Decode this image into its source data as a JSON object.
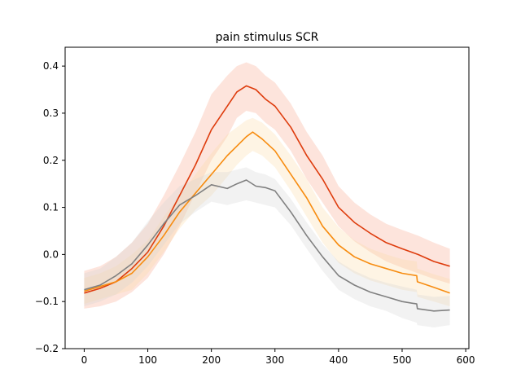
{
  "chart_data": {
    "type": "line",
    "title": "pain stimulus SCR",
    "xlabel": "",
    "ylabel": "",
    "xlim": [
      -30,
      605
    ],
    "ylim": [
      -0.2,
      0.44
    ],
    "xticks": [
      0,
      100,
      200,
      300,
      400,
      500,
      600
    ],
    "yticks": [
      -0.2,
      -0.1,
      0.0,
      0.1,
      0.2,
      0.3,
      0.4
    ],
    "grid": false,
    "series": [
      {
        "color": "#de3c0d",
        "band_color": "#f7a48a",
        "x": [
          0,
          25,
          50,
          75,
          100,
          125,
          150,
          175,
          200,
          225,
          240,
          255,
          270,
          285,
          300,
          325,
          350,
          375,
          400,
          425,
          450,
          475,
          500,
          525,
          550,
          575
        ],
        "y": [
          -0.082,
          -0.072,
          -0.058,
          -0.03,
          0.005,
          0.06,
          0.125,
          0.19,
          0.265,
          0.315,
          0.345,
          0.358,
          0.35,
          0.33,
          0.315,
          0.27,
          0.21,
          0.16,
          0.1,
          0.068,
          0.045,
          0.025,
          0.012,
          0.0,
          -0.015,
          -0.025
        ],
        "upper": [
          -0.035,
          -0.025,
          -0.005,
          0.025,
          0.065,
          0.125,
          0.19,
          0.26,
          0.34,
          0.38,
          0.4,
          0.408,
          0.4,
          0.38,
          0.365,
          0.32,
          0.26,
          0.21,
          0.145,
          0.11,
          0.085,
          0.065,
          0.052,
          0.04,
          0.025,
          0.012
        ],
        "lower": [
          -0.115,
          -0.11,
          -0.1,
          -0.08,
          -0.05,
          0.0,
          0.06,
          0.13,
          0.2,
          0.25,
          0.29,
          0.305,
          0.3,
          0.28,
          0.265,
          0.22,
          0.16,
          0.11,
          0.06,
          0.028,
          0.005,
          -0.015,
          -0.028,
          -0.04,
          -0.052,
          -0.062
        ]
      },
      {
        "color": "#f78c10",
        "band_color": "#fbd9a6",
        "x": [
          0,
          25,
          50,
          75,
          100,
          125,
          150,
          175,
          200,
          225,
          240,
          255,
          265,
          280,
          300,
          325,
          350,
          375,
          400,
          425,
          450,
          475,
          500,
          523,
          524,
          550,
          575
        ],
        "y": [
          -0.078,
          -0.068,
          -0.058,
          -0.04,
          -0.005,
          0.04,
          0.09,
          0.13,
          0.17,
          0.21,
          0.23,
          0.25,
          0.26,
          0.245,
          0.22,
          0.17,
          0.12,
          0.06,
          0.02,
          -0.005,
          -0.02,
          -0.03,
          -0.04,
          -0.045,
          -0.058,
          -0.07,
          -0.082
        ],
        "upper": [
          -0.05,
          -0.04,
          -0.025,
          0.0,
          0.03,
          0.08,
          0.125,
          0.17,
          0.215,
          0.255,
          0.27,
          0.285,
          0.29,
          0.28,
          0.255,
          0.21,
          0.16,
          0.1,
          0.058,
          0.03,
          0.012,
          0.0,
          -0.01,
          -0.015,
          -0.03,
          -0.042,
          -0.052
        ],
        "lower": [
          -0.105,
          -0.095,
          -0.085,
          -0.075,
          -0.04,
          0.005,
          0.055,
          0.095,
          0.125,
          0.165,
          0.19,
          0.21,
          0.22,
          0.21,
          0.185,
          0.135,
          0.08,
          0.025,
          -0.018,
          -0.04,
          -0.055,
          -0.065,
          -0.075,
          -0.08,
          -0.09,
          -0.1,
          -0.11
        ]
      },
      {
        "color": "#808080",
        "band_color": "#d3d3d3",
        "x": [
          0,
          25,
          50,
          75,
          100,
          125,
          150,
          175,
          200,
          225,
          240,
          255,
          270,
          285,
          300,
          325,
          350,
          375,
          400,
          425,
          450,
          475,
          500,
          523,
          524,
          550,
          575
        ],
        "y": [
          -0.075,
          -0.065,
          -0.045,
          -0.02,
          0.02,
          0.065,
          0.105,
          0.125,
          0.148,
          0.14,
          0.15,
          0.158,
          0.145,
          0.142,
          0.135,
          0.09,
          0.04,
          -0.005,
          -0.045,
          -0.065,
          -0.08,
          -0.09,
          -0.1,
          -0.105,
          -0.115,
          -0.12,
          -0.118
        ],
        "upper": [
          -0.04,
          -0.03,
          -0.005,
          0.025,
          0.07,
          0.11,
          0.145,
          0.16,
          0.175,
          0.175,
          0.18,
          0.185,
          0.175,
          0.17,
          0.16,
          0.118,
          0.068,
          0.022,
          -0.015,
          -0.035,
          -0.05,
          -0.06,
          -0.068,
          -0.075,
          -0.085,
          -0.09,
          -0.088
        ],
        "lower": [
          -0.11,
          -0.1,
          -0.085,
          -0.06,
          -0.025,
          0.02,
          0.065,
          0.09,
          0.112,
          0.105,
          0.11,
          0.115,
          0.11,
          0.105,
          0.1,
          0.062,
          0.012,
          -0.035,
          -0.075,
          -0.095,
          -0.11,
          -0.12,
          -0.135,
          -0.145,
          -0.15,
          -0.155,
          -0.15
        ]
      }
    ]
  }
}
